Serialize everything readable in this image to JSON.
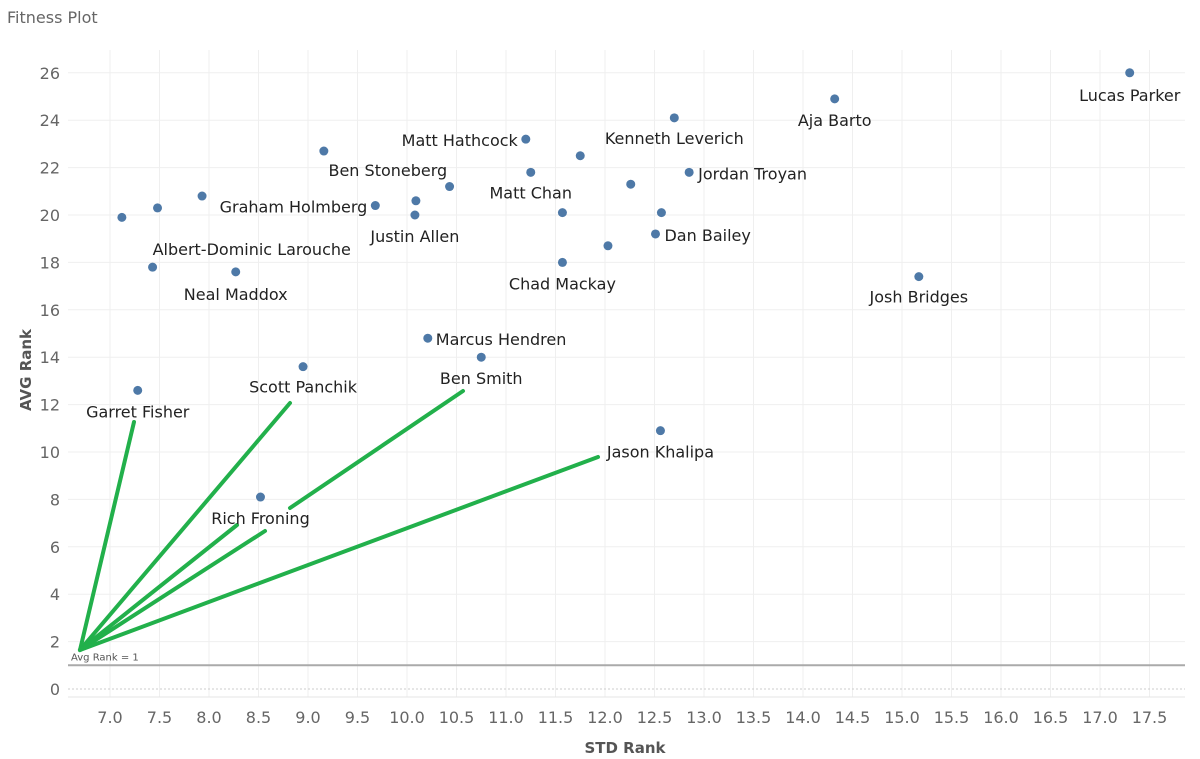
{
  "chart_data": {
    "type": "scatter",
    "title": "Fitness Plot",
    "xlabel": "STD Rank",
    "ylabel": "AVG Rank",
    "xlim": [
      6.58,
      17.86
    ],
    "ylim": [
      -0.35,
      27
    ],
    "x_ticks": [
      "7.0",
      "7.5",
      "8.0",
      "8.5",
      "9.0",
      "9.5",
      "10.0",
      "10.5",
      "11.0",
      "11.5",
      "12.0",
      "12.5",
      "13.0",
      "13.5",
      "14.0",
      "14.5",
      "15.0",
      "15.5",
      "16.0",
      "16.5",
      "17.0",
      "17.5"
    ],
    "y_ticks": [
      "0",
      "2",
      "4",
      "6",
      "8",
      "10",
      "12",
      "14",
      "16",
      "18",
      "20",
      "22",
      "24",
      "26"
    ],
    "grid": true,
    "point_color": "#4e79a7",
    "annotation_color": "#22b04b",
    "reference_line": {
      "value": 1,
      "label": "Avg Rank = 1"
    },
    "points": [
      {
        "name": "Lucas Parker",
        "x": 17.3,
        "y": 26.0
      },
      {
        "name": "Aja Barto",
        "x": 14.32,
        "y": 24.9
      },
      {
        "name": "Kenneth Leverich",
        "x": 12.7,
        "y": 24.1
      },
      {
        "name": "Matt Hathcock",
        "x": 11.2,
        "y": 23.2
      },
      {
        "name": "",
        "x": 11.75,
        "y": 22.5
      },
      {
        "name": "Ben Stoneberg",
        "x": 9.16,
        "y": 22.7
      },
      {
        "name": "Matt Chan",
        "x": 11.25,
        "y": 21.8
      },
      {
        "name": "Jordan Troyan",
        "x": 12.85,
        "y": 21.8
      },
      {
        "name": "",
        "x": 10.43,
        "y": 21.2
      },
      {
        "name": "",
        "x": 12.26,
        "y": 21.3
      },
      {
        "name": "Graham Holmberg",
        "x": 9.68,
        "y": 20.4
      },
      {
        "name": "",
        "x": 7.93,
        "y": 20.8
      },
      {
        "name": "",
        "x": 7.48,
        "y": 20.3
      },
      {
        "name": "",
        "x": 7.12,
        "y": 19.9
      },
      {
        "name": "",
        "x": 10.09,
        "y": 20.6
      },
      {
        "name": "Justin Allen",
        "x": 10.08,
        "y": 20.0
      },
      {
        "name": "",
        "x": 11.57,
        "y": 20.1
      },
      {
        "name": "",
        "x": 12.57,
        "y": 20.1
      },
      {
        "name": "Dan Bailey",
        "x": 12.51,
        "y": 19.2
      },
      {
        "name": "",
        "x": 12.03,
        "y": 18.7
      },
      {
        "name": "Chad Mackay",
        "x": 11.57,
        "y": 18.0
      },
      {
        "name": "Albert-Dominic Larouche",
        "x": 7.43,
        "y": 17.8
      },
      {
        "name": "Neal Maddox",
        "x": 8.27,
        "y": 17.6
      },
      {
        "name": "Josh Bridges",
        "x": 15.17,
        "y": 17.4
      },
      {
        "name": "Marcus Hendren",
        "x": 10.21,
        "y": 14.8
      },
      {
        "name": "Ben Smith",
        "x": 10.75,
        "y": 14.0
      },
      {
        "name": "Scott Panchik",
        "x": 8.95,
        "y": 13.6
      },
      {
        "name": "Garret Fisher",
        "x": 7.28,
        "y": 12.6
      },
      {
        "name": "Jason Khalipa",
        "x": 12.56,
        "y": 10.9
      },
      {
        "name": "Rich Froning",
        "x": 8.52,
        "y": 8.1
      }
    ]
  }
}
